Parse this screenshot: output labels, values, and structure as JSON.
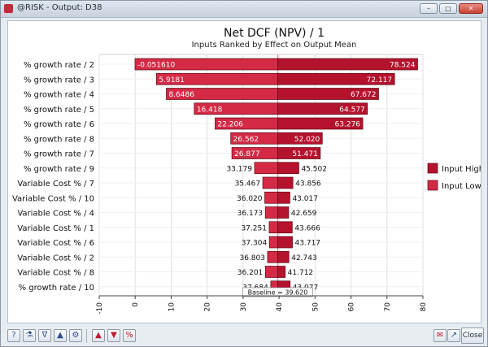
{
  "window": {
    "title": "@RISK - Output: D38",
    "controls": {
      "minimize": "–",
      "maximize": "□",
      "close": "✕"
    }
  },
  "colors": {
    "input_high": "#b5122d",
    "input_low": "#d42a45",
    "baseline": "#d07a85",
    "grid": "#e0e0e0"
  },
  "chart_data": {
    "type": "bar",
    "orientation": "horizontal-tornado",
    "title": "Net DCF (NPV) / 1",
    "subtitle": "Inputs Ranked by Effect on Output Mean",
    "categories": [
      "% growth rate / 2",
      "% growth rate / 3",
      "% growth rate / 4",
      "% growth rate / 5",
      "% growth rate / 6",
      "% growth rate / 8",
      "% growth rate / 7",
      "% growth rate / 9",
      "Variable Cost % / 7",
      "Variable Cost % / 10",
      "Variable Cost % / 4",
      "Variable Cost % / 1",
      "Variable Cost % / 6",
      "Variable Cost % / 2",
      "Variable Cost % / 8",
      "% growth rate / 10"
    ],
    "low_values": [
      "-0.051610",
      "5.9181",
      "8.6486",
      "16.418",
      "22.206",
      "26.562",
      "26.877",
      "33.179",
      "35.467",
      "36.020",
      "36.173",
      "37.251",
      "37.304",
      "36.803",
      "36.201",
      "37.684"
    ],
    "high_values": [
      "78.524",
      "72.117",
      "67.672",
      "64.577",
      "63.276",
      "52.020",
      "51.471",
      "45.502",
      "43.856",
      "43.017",
      "42.659",
      "43.666",
      "43.717",
      "42.743",
      "41.712",
      "43.077"
    ],
    "baseline": 39.62,
    "baseline_label": "Baseline = 39.620",
    "xlim": [
      -10,
      80
    ],
    "xticks": [
      "-10",
      "0",
      "10",
      "20",
      "30",
      "40",
      "50",
      "60",
      "70",
      "80"
    ],
    "legend": [
      {
        "name": "Input High",
        "color": "#b5122d"
      },
      {
        "name": "Input Low",
        "color": "#d42a45"
      }
    ],
    "legend_position": "right",
    "grid": true
  },
  "toolbar": {
    "buttons": [
      {
        "name": "help-button",
        "glyph": "?",
        "red": false
      },
      {
        "name": "flask-icon-button",
        "glyph": "⚗",
        "red": false
      },
      {
        "name": "filter-button",
        "glyph": "∇",
        "red": false
      },
      {
        "name": "triangle-button",
        "glyph": "▲",
        "red": false
      },
      {
        "name": "settings-button",
        "glyph": "⚙",
        "red": false
      },
      {
        "name": "histogram-button",
        "glyph": "▲",
        "red": true
      },
      {
        "name": "tornado-button",
        "glyph": "▼",
        "red": true
      },
      {
        "name": "percent-button",
        "glyph": "%",
        "red": true
      }
    ],
    "right_buttons": [
      {
        "name": "comment-button",
        "glyph": "✉",
        "red": true
      },
      {
        "name": "export-button",
        "glyph": "↗",
        "red": false
      }
    ],
    "close_label": "Close"
  }
}
